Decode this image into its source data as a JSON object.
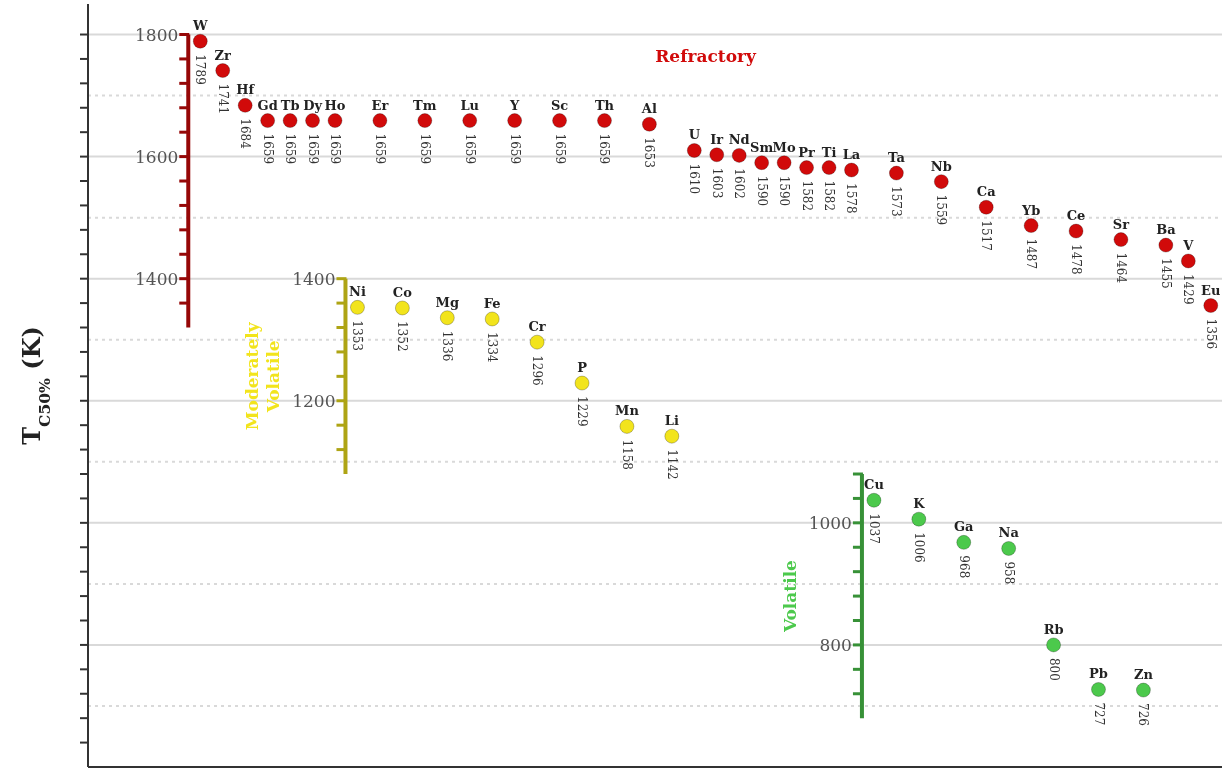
{
  "chart_data": {
    "type": "scatter",
    "ylabel": "T$_{C50%}$ (K)",
    "categories": [
      "W",
      "Zr",
      "Hf",
      "Gd",
      "Tb",
      "Dy",
      "Ho",
      "Ni",
      "Er",
      "Co",
      "Tm",
      "Mg",
      "Lu",
      "Fe",
      "Y",
      "Cr",
      "Sc",
      "P",
      "Th",
      "Mn",
      "Al",
      "Li",
      "U",
      "Ir",
      "Nd",
      "Sm",
      "Mo",
      "Pr",
      "Ti",
      "La",
      "Cu",
      "Ta",
      "K",
      "Nb",
      "Ga",
      "Ca",
      "Na",
      "Yb",
      "Rb",
      "Ce",
      "Pb",
      "Sr",
      "Zn",
      "Ba",
      "V",
      "Eu"
    ],
    "series": [
      {
        "name": "Refractory",
        "color": "#d10a0a",
        "values": [
          1789,
          1741,
          1684,
          1659,
          1659,
          1659,
          1659,
          null,
          1659,
          null,
          1659,
          null,
          1659,
          null,
          1659,
          null,
          1659,
          null,
          1659,
          null,
          1653,
          null,
          1610,
          1603,
          1602,
          1590,
          1590,
          1582,
          1582,
          1578,
          null,
          1573,
          null,
          1559,
          null,
          1517,
          null,
          1487,
          null,
          1478,
          null,
          1464,
          null,
          1455,
          1429,
          1356
        ]
      },
      {
        "name": "Moderately Volatile",
        "color": "#f2e41c",
        "axis": "y2",
        "values": [
          null,
          null,
          null,
          null,
          null,
          null,
          null,
          1353,
          null,
          1352,
          null,
          1336,
          null,
          1334,
          null,
          1296,
          null,
          1229,
          null,
          1158,
          null,
          1142,
          null,
          null,
          null,
          null,
          null,
          null,
          null,
          null,
          null,
          null,
          null,
          null,
          null,
          null,
          null,
          null,
          null,
          null,
          null,
          null,
          null,
          null,
          null,
          null
        ]
      },
      {
        "name": "Volatile",
        "color": "#4cc94c",
        "axis": "y3",
        "values": [
          null,
          null,
          null,
          null,
          null,
          null,
          null,
          null,
          null,
          null,
          null,
          null,
          null,
          null,
          null,
          null,
          null,
          null,
          null,
          null,
          null,
          null,
          null,
          null,
          null,
          null,
          null,
          null,
          null,
          null,
          1037,
          null,
          1006,
          null,
          968,
          null,
          958,
          null,
          800,
          null,
          727,
          null,
          726,
          null,
          null,
          null
        ]
      }
    ],
    "ylim": [
      600,
      1850
    ],
    "yticks": [
      {
        "value": 1360,
        "label": null
      },
      1400,
      {
        "value": 1440,
        "label": null
      },
      {
        "value": 1480,
        "label": null
      },
      {
        "value": 1520,
        "label": null
      },
      {
        "value": 1560,
        "label": null
      },
      1600,
      {
        "value": 1640,
        "label": null
      },
      {
        "value": 1680,
        "label": null
      },
      {
        "value": 1720,
        "label": null
      },
      {
        "value": 1760,
        "label": null
      },
      1800
    ],
    "y2lim": [
      600,
      1850
    ],
    "y2ticks": [
      1200,
      1400
    ],
    "y3lim": [
      600,
      1850
    ],
    "y3ticks": [
      800,
      1000
    ],
    "ref_lines": [
      {
        "axis": "y",
        "value": 1800,
        "color": "#d9d9d9",
        "line_style": "solid"
      },
      {
        "axis": "y",
        "value": 1700,
        "color": "#d9d9d9",
        "line_style": "dotted"
      },
      {
        "axis": "y",
        "value": 1600,
        "color": "#d9d9d9",
        "line_style": "solid"
      },
      {
        "axis": "y",
        "value": 1500,
        "color": "#d9d9d9",
        "line_style": "dotted"
      },
      {
        "axis": "y",
        "value": 1400,
        "color": "#d9d9d9",
        "line_style": "solid"
      },
      {
        "axis": "y",
        "value": 1300,
        "color": "#d9d9d9",
        "line_style": "dotted"
      },
      {
        "axis": "y",
        "value": 1200,
        "color": "#d9d9d9",
        "line_style": "solid"
      },
      {
        "axis": "y",
        "value": 1100,
        "color": "#d9d9d9",
        "line_style": "dotted"
      },
      {
        "axis": "y",
        "value": 1000,
        "color": "#d9d9d9",
        "line_style": "solid"
      },
      {
        "axis": "y",
        "value": 900,
        "color": "#d9d9d9",
        "line_style": "dotted"
      },
      {
        "axis": "y",
        "value": 800,
        "color": "#d9d9d9",
        "line_style": "solid"
      },
      {
        "axis": "y",
        "value": 700,
        "color": "#d9d9d9",
        "line_style": "dotted"
      }
    ],
    "data_labels": true,
    "marker": "circle",
    "tick_labels": "y"
  }
}
